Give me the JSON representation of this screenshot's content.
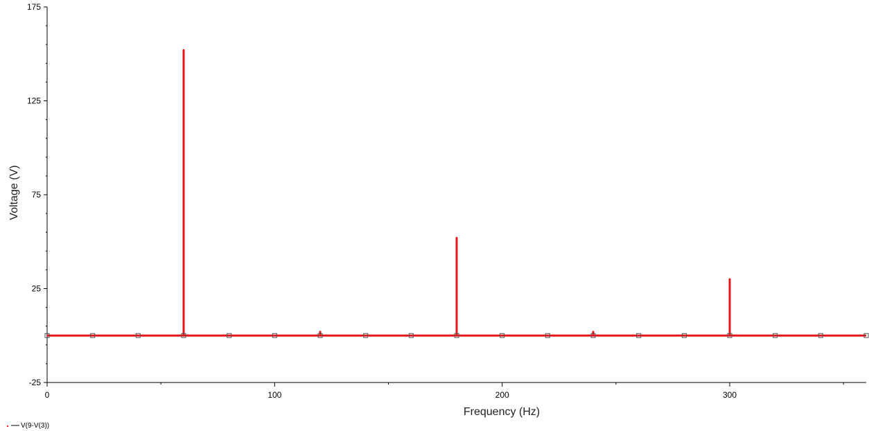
{
  "chart_data": {
    "type": "line",
    "xlabel": "Frequency (Hz)",
    "ylabel": "Voltage (V)",
    "xlim": [
      0,
      360
    ],
    "ylim": [
      -25,
      175
    ],
    "x_ticks": [
      0,
      100,
      200,
      300
    ],
    "x_tick_labels": [
      "0",
      "100",
      "200",
      "300"
    ],
    "y_ticks": [
      -25,
      25,
      75,
      125,
      175
    ],
    "y_tick_labels": [
      "-25",
      "25",
      "75",
      "125",
      "175"
    ],
    "grid": false,
    "legend_position": "bottom-left",
    "series": [
      {
        "name": "V(9-V(3))",
        "color": "#e8141c",
        "baseline": 0,
        "x": [
          0,
          60,
          120,
          180,
          240,
          300,
          360
        ],
        "values": [
          0,
          152,
          2,
          52,
          2,
          30,
          0
        ]
      }
    ],
    "marker_x": [
      0,
      20,
      40,
      60,
      80,
      100,
      120,
      140,
      160,
      180,
      200,
      220,
      240,
      260,
      280,
      300,
      320,
      340,
      360
    ]
  }
}
